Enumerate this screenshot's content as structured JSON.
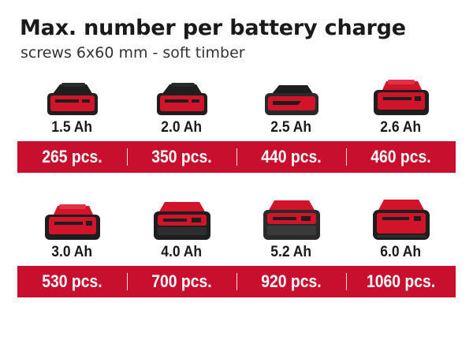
{
  "title": "Max. number per battery charge",
  "subtitle": "screws 6x60 mm - soft timber",
  "colors": {
    "bar_red": "#c8102e",
    "battery_red": "#d2142b",
    "battery_black": "#1e1e1e"
  },
  "rows": [
    {
      "items": [
        {
          "capacity": "1.5 Ah",
          "count": "265 pcs.",
          "icon": "battery-pack-small-icon"
        },
        {
          "capacity": "2.0 Ah",
          "count": "350 pcs.",
          "icon": "battery-pack-small-icon"
        },
        {
          "capacity": "2.5 Ah",
          "count": "440 pcs.",
          "icon": "battery-pack-slim-icon"
        },
        {
          "capacity": "2.6 Ah",
          "count": "460 pcs.",
          "icon": "battery-pack-plus-icon"
        }
      ]
    },
    {
      "items": [
        {
          "capacity": "3.0 Ah",
          "count": "530 pcs.",
          "icon": "battery-pack-plus-icon"
        },
        {
          "capacity": "4.0 Ah",
          "count": "700 pcs.",
          "icon": "battery-pack-large-icon"
        },
        {
          "capacity": "5.2 Ah",
          "count": "920 pcs.",
          "icon": "battery-pack-large-icon"
        },
        {
          "capacity": "6.0 Ah",
          "count": "1060 pcs.",
          "icon": "battery-pack-xl-icon"
        }
      ]
    }
  ]
}
